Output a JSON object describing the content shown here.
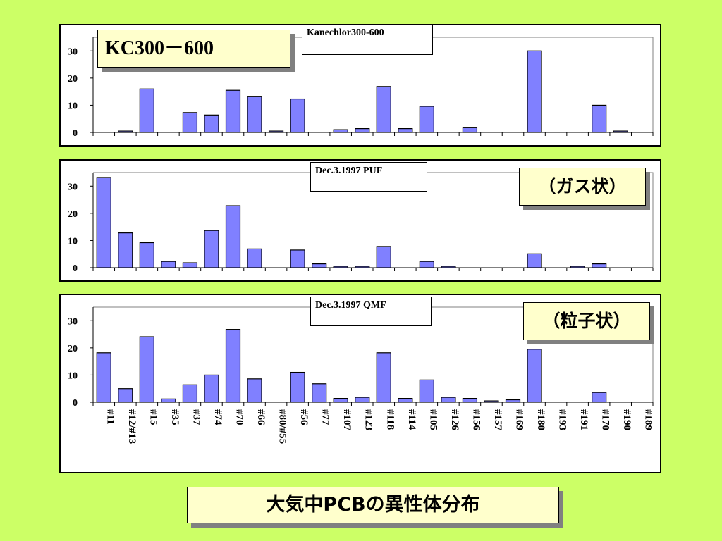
{
  "title": "大気中PCBの異性体分布",
  "chart_data": [
    {
      "type": "bar",
      "callout": "KC300－600",
      "sample_label": "Kanechlor300-600",
      "categories": [
        "#11",
        "#12/#13",
        "#15",
        "#35",
        "#37",
        "#74",
        "#70",
        "#66",
        "#80/#55",
        "#56",
        "#77",
        "#107",
        "#123",
        "#118",
        "#114",
        "#105",
        "#126",
        "#156",
        "#157",
        "#169",
        "#180",
        "#193",
        "#191",
        "#170",
        "#190",
        "#189"
      ],
      "values": [
        0,
        0.5,
        16,
        0,
        7.3,
        6.4,
        15.5,
        13.3,
        0.5,
        12.3,
        0,
        1,
        1.4,
        16.9,
        1.4,
        9.6,
        0,
        1.9,
        0,
        0,
        30,
        0,
        0,
        10,
        0.5,
        0
      ],
      "ylim": [
        0,
        35
      ],
      "yticks": [
        0,
        10,
        20,
        30
      ],
      "bar_color": "#8080ff",
      "grid": false
    },
    {
      "type": "bar",
      "callout": "（ガス状）",
      "sample_label": "Dec.3.1997 PUF",
      "categories": [
        "#11",
        "#12/#13",
        "#15",
        "#35",
        "#37",
        "#74",
        "#70",
        "#66",
        "#80/#55",
        "#56",
        "#77",
        "#107",
        "#123",
        "#118",
        "#114",
        "#105",
        "#126",
        "#156",
        "#157",
        "#169",
        "#180",
        "#193",
        "#191",
        "#170",
        "#190",
        "#189"
      ],
      "values": [
        33.2,
        12.8,
        9.2,
        2.3,
        1.8,
        13.7,
        22.8,
        6.9,
        0,
        6.5,
        1.4,
        0.5,
        0.5,
        7.8,
        0,
        2.3,
        0.5,
        0,
        0,
        0,
        5.1,
        0,
        0.5,
        1.4,
        0,
        0
      ],
      "ylim": [
        0,
        35
      ],
      "yticks": [
        0,
        10,
        20,
        30
      ],
      "bar_color": "#8080ff",
      "grid": false
    },
    {
      "type": "bar",
      "callout": "（粒子状）",
      "sample_label": "Dec.3.1997 QMF",
      "categories": [
        "#11",
        "#12/#13",
        "#15",
        "#35",
        "#37",
        "#74",
        "#70",
        "#66",
        "#80/#55",
        "#56",
        "#77",
        "#107",
        "#123",
        "#118",
        "#114",
        "#105",
        "#126",
        "#156",
        "#157",
        "#169",
        "#180",
        "#193",
        "#191",
        "#170",
        "#190",
        "#189"
      ],
      "values": [
        18.2,
        5,
        24.1,
        1.2,
        6.4,
        10,
        26.8,
        8.6,
        0,
        11,
        6.8,
        1.4,
        1.8,
        18.2,
        1.4,
        8.2,
        1.8,
        1.4,
        0.5,
        0.9,
        19.5,
        0,
        0,
        3.6,
        0,
        0
      ],
      "ylim": [
        0,
        35
      ],
      "yticks": [
        0,
        10,
        20,
        30
      ],
      "bar_color": "#8080ff",
      "grid": false
    }
  ]
}
